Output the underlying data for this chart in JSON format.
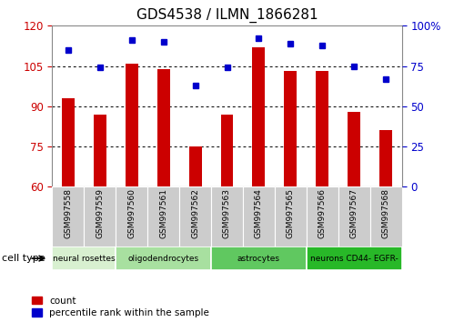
{
  "title": "GDS4538 / ILMN_1866281",
  "samples": [
    "GSM997558",
    "GSM997559",
    "GSM997560",
    "GSM997561",
    "GSM997562",
    "GSM997563",
    "GSM997564",
    "GSM997565",
    "GSM997566",
    "GSM997567",
    "GSM997568"
  ],
  "counts": [
    93,
    87,
    106,
    104,
    75,
    87,
    112,
    103,
    103,
    88,
    81
  ],
  "percentile_ranks": [
    85,
    74,
    91,
    90,
    63,
    74,
    92,
    89,
    88,
    75,
    67
  ],
  "ylim_left": [
    60,
    120
  ],
  "ylim_right": [
    0,
    100
  ],
  "yticks_left": [
    60,
    75,
    90,
    105,
    120
  ],
  "yticks_right": [
    0,
    25,
    50,
    75,
    100
  ],
  "cell_types": [
    {
      "label": "neural rosettes",
      "span": [
        0,
        1
      ],
      "color": "#d8f0d0"
    },
    {
      "label": "oligodendrocytes",
      "span": [
        2,
        4
      ],
      "color": "#a8e0a0"
    },
    {
      "label": "astrocytes",
      "span": [
        5,
        7
      ],
      "color": "#60c860"
    },
    {
      "label": "neurons CD44- EGFR-",
      "span": [
        8,
        10
      ],
      "color": "#28b828"
    }
  ],
  "bar_color": "#cc0000",
  "marker_color": "#0000cc",
  "left_label_color": "#cc0000",
  "right_label_color": "#0000cc",
  "tick_bg": "#cccccc",
  "figsize": [
    4.99,
    3.54
  ],
  "dpi": 100
}
